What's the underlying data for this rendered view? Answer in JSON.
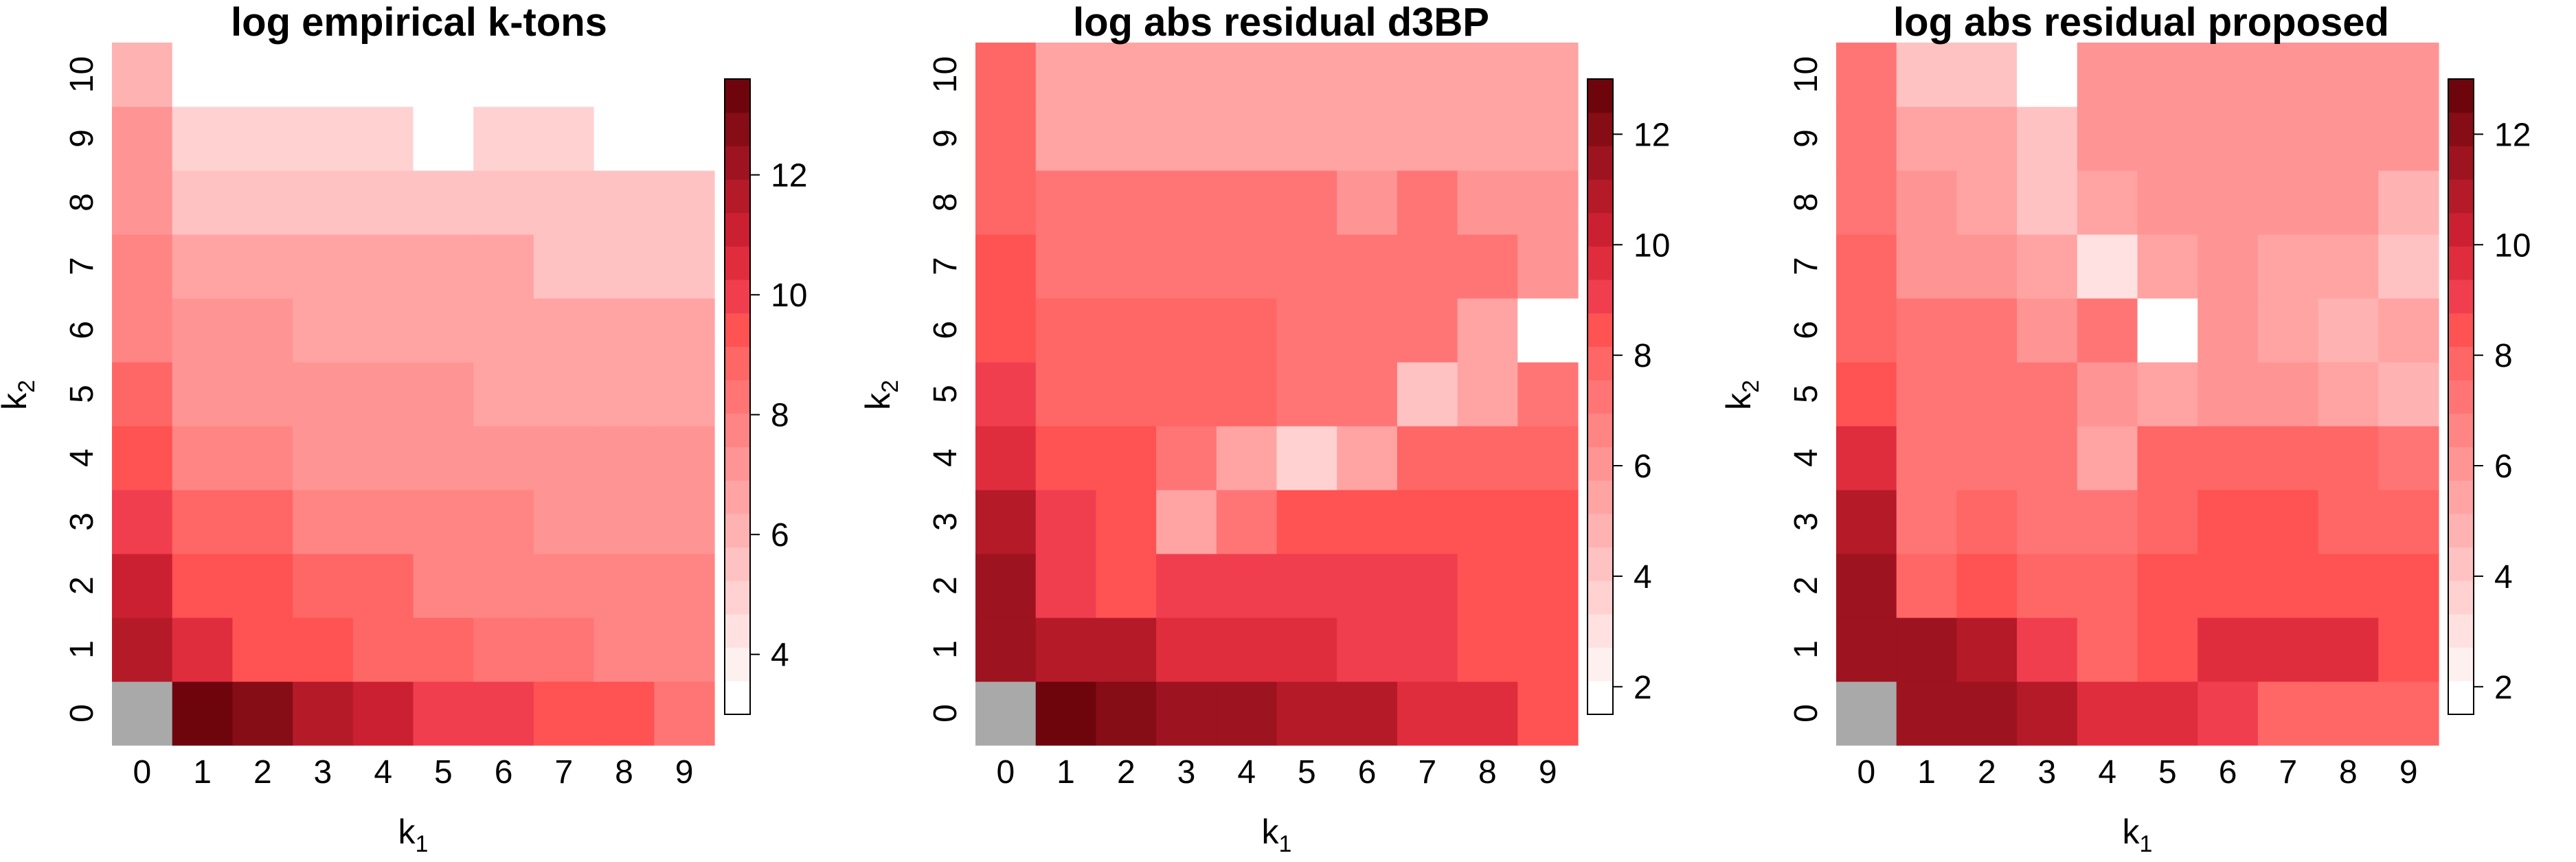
{
  "palette": [
    "#FFFFFF",
    "#FFF0F0",
    "#FFE1E1",
    "#FFD1D1",
    "#FFC2C2",
    "#FFB2B2",
    "#FFA3A3",
    "#FF9494",
    "#FF8585",
    "#FF7575",
    "#FF6666",
    "#FF5252",
    "#F03E4F",
    "#E02D3E",
    "#CB2031",
    "#B51A29",
    "#9E1320",
    "#860C16",
    "#6E050C"
  ],
  "missing_color": "#A9A9A9",
  "chart_data": [
    {
      "type": "heatmap",
      "title": "log empirical k-tons",
      "xlabel": "k",
      "xlabel_sub": "1",
      "ylabel": "k",
      "ylabel_sub": "2",
      "x_ticks": [
        "0",
        "1",
        "2",
        "3",
        "4",
        "5",
        "6",
        "7",
        "8",
        "9"
      ],
      "y_ticks": [
        "0",
        "1",
        "2",
        "3",
        "4",
        "5",
        "6",
        "7",
        "8",
        "9",
        "10"
      ],
      "colorbar_ticks": [
        4,
        6,
        8,
        10,
        12
      ],
      "colorbar_range": [
        3,
        13.6
      ],
      "values": [
        [
          null,
          13.6,
          12.6,
          11.9,
          11.0,
          10.2,
          10.2,
          9.5,
          9.5,
          8.3
        ],
        [
          11.9,
          10.3,
          9.5,
          9.5,
          8.8,
          8.8,
          8.4,
          8.4,
          7.8,
          7.8
        ],
        [
          11.0,
          9.5,
          9.5,
          8.8,
          8.8,
          7.8,
          7.8,
          7.8,
          7.8,
          7.8
        ],
        [
          10.2,
          8.6,
          8.6,
          7.8,
          7.8,
          7.8,
          7.8,
          7.1,
          7.1,
          7.1
        ],
        [
          9.5,
          7.8,
          7.8,
          7.1,
          7.1,
          7.1,
          7.1,
          7.1,
          7.1,
          7.1
        ],
        [
          8.8,
          7.1,
          7.1,
          7.1,
          7.1,
          7.1,
          6.5,
          6.5,
          6.5,
          6.5
        ],
        [
          8.0,
          7.1,
          7.1,
          6.5,
          6.5,
          6.5,
          6.5,
          6.5,
          6.5,
          6.5
        ],
        [
          7.8,
          6.5,
          6.5,
          6.5,
          6.5,
          6.5,
          6.5,
          5.5,
          5.5,
          5.5
        ],
        [
          7.1,
          5.5,
          5.5,
          5.5,
          5.5,
          5.5,
          5.5,
          5.5,
          5.5,
          5.5
        ],
        [
          7.1,
          5.0,
          5.0,
          5.0,
          5.0,
          3.5,
          5.0,
          5.0,
          3.5,
          3.5
        ],
        [
          6.0,
          3.5,
          3.5,
          3.5,
          3.5,
          3.5,
          3.5,
          3.5,
          3.5,
          3.5
        ]
      ]
    },
    {
      "type": "heatmap",
      "title": "log abs residual d3BP",
      "xlabel": "k",
      "xlabel_sub": "1",
      "ylabel": "k",
      "ylabel_sub": "2",
      "x_ticks": [
        "0",
        "1",
        "2",
        "3",
        "4",
        "5",
        "6",
        "7",
        "8",
        "9"
      ],
      "y_ticks": [
        "0",
        "1",
        "2",
        "3",
        "4",
        "5",
        "6",
        "7",
        "8",
        "9",
        "10"
      ],
      "colorbar_ticks": [
        2,
        4,
        6,
        8,
        10,
        12
      ],
      "colorbar_range": [
        1.5,
        13
      ],
      "values": [
        [
          null,
          13.0,
          12.1,
          11.4,
          11.4,
          10.7,
          10.7,
          9.9,
          9.9,
          8.5
        ],
        [
          11.4,
          10.7,
          10.7,
          9.9,
          9.9,
          9.9,
          9.2,
          9.2,
          8.5,
          8.5
        ],
        [
          11.4,
          9.2,
          8.5,
          9.2,
          9.2,
          9.2,
          9.2,
          9.2,
          8.5,
          8.5
        ],
        [
          10.7,
          9.2,
          8.5,
          5.6,
          7.0,
          8.5,
          8.5,
          8.5,
          8.5,
          8.5
        ],
        [
          9.9,
          8.5,
          8.5,
          7.0,
          5.6,
          3.6,
          5.6,
          7.7,
          7.7,
          7.7
        ],
        [
          9.2,
          7.7,
          7.7,
          7.7,
          7.7,
          7.0,
          7.0,
          4.2,
          5.6,
          7.0
        ],
        [
          8.5,
          7.7,
          7.7,
          7.7,
          7.7,
          7.0,
          7.0,
          7.0,
          5.6,
          2.0
        ],
        [
          8.5,
          7.0,
          7.0,
          7.0,
          7.0,
          7.0,
          7.0,
          7.0,
          7.0,
          6.3
        ],
        [
          7.7,
          7.0,
          7.0,
          7.0,
          7.0,
          7.0,
          6.3,
          7.0,
          6.3,
          6.3
        ],
        [
          7.7,
          5.6,
          5.6,
          5.6,
          5.6,
          5.6,
          5.6,
          5.6,
          5.6,
          5.6
        ],
        [
          7.7,
          5.6,
          5.6,
          5.6,
          5.6,
          5.6,
          5.6,
          5.6,
          5.6,
          5.6
        ]
      ]
    },
    {
      "type": "heatmap",
      "title": "log abs residual proposed",
      "xlabel": "k",
      "xlabel_sub": "1",
      "ylabel": "k",
      "ylabel_sub": "2",
      "x_ticks": [
        "0",
        "1",
        "2",
        "3",
        "4",
        "5",
        "6",
        "7",
        "8",
        "9"
      ],
      "y_ticks": [
        "0",
        "1",
        "2",
        "3",
        "4",
        "5",
        "6",
        "7",
        "8",
        "9",
        "10"
      ],
      "colorbar_ticks": [
        2,
        4,
        6,
        8,
        10,
        12
      ],
      "colorbar_range": [
        1.5,
        13
      ],
      "values": [
        [
          null,
          11.4,
          11.4,
          10.7,
          9.9,
          9.9,
          9.2,
          7.7,
          7.7,
          7.7
        ],
        [
          11.4,
          11.4,
          10.7,
          9.2,
          7.7,
          8.5,
          9.9,
          9.9,
          9.9,
          8.5
        ],
        [
          11.4,
          7.7,
          8.5,
          7.7,
          7.7,
          8.5,
          8.5,
          8.5,
          8.5,
          8.5
        ],
        [
          10.7,
          7.0,
          7.7,
          7.0,
          7.0,
          7.7,
          8.5,
          8.5,
          7.7,
          7.7
        ],
        [
          9.9,
          7.0,
          7.0,
          7.0,
          5.6,
          7.7,
          7.7,
          7.7,
          7.7,
          7.0
        ],
        [
          8.5,
          7.0,
          7.0,
          7.0,
          6.3,
          5.6,
          6.3,
          6.3,
          5.6,
          4.9
        ],
        [
          7.7,
          7.0,
          7.0,
          6.3,
          7.0,
          2.0,
          6.3,
          5.6,
          4.9,
          5.6
        ],
        [
          7.7,
          6.3,
          6.3,
          5.6,
          2.9,
          5.6,
          6.3,
          5.6,
          5.6,
          4.2
        ],
        [
          7.0,
          6.3,
          5.6,
          4.2,
          5.6,
          6.3,
          6.3,
          6.3,
          6.3,
          4.9
        ],
        [
          7.0,
          5.6,
          5.6,
          4.2,
          6.3,
          6.3,
          6.3,
          6.3,
          6.3,
          6.3
        ],
        [
          7.0,
          4.2,
          4.2,
          2.0,
          6.3,
          6.3,
          6.3,
          6.3,
          6.3,
          6.3
        ]
      ]
    }
  ]
}
